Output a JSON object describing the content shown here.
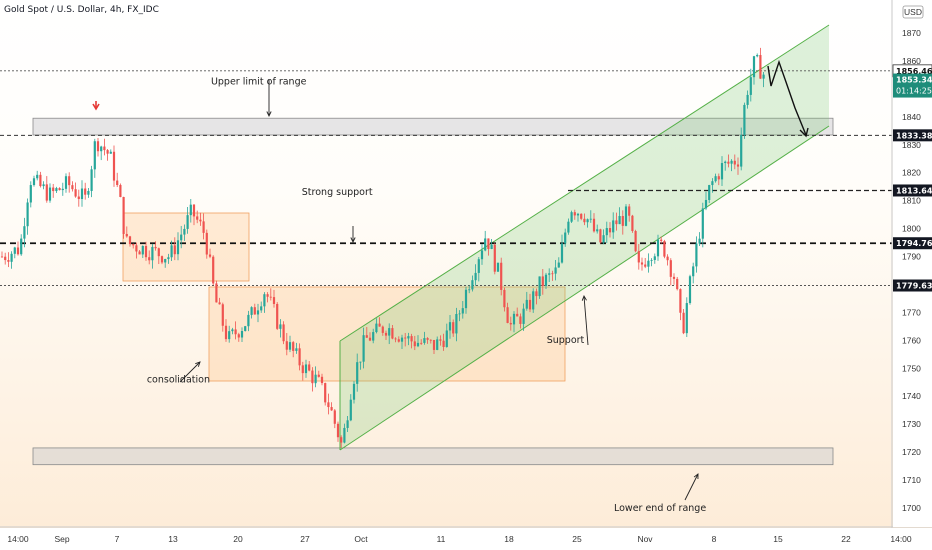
{
  "chart_data": {
    "type": "candlestick",
    "title": "Gold Spot / U.S. Dollar, 4h, FX_IDC",
    "currency": "USD",
    "ylim": [
      1695,
      1875
    ],
    "y_ticks": [
      1700,
      1710,
      1720,
      1730,
      1740,
      1750,
      1760,
      1770,
      1780,
      1790,
      1800,
      1810,
      1820,
      1830,
      1840,
      1850,
      1860,
      1870
    ],
    "x_ticks": [
      "14:00",
      "Sep",
      "7",
      "13",
      "20",
      "27",
      "Oct",
      "11",
      "18",
      "25",
      "Nov",
      "8",
      "15",
      "22",
      "14:00"
    ],
    "price_labels": [
      {
        "value": 1856.46,
        "text": "1856.46",
        "style": "outline"
      },
      {
        "value": 1853.34,
        "text": "1853.34",
        "sub": "01:14:25",
        "style": "current"
      },
      {
        "value": 1833.38,
        "text": "1833.38",
        "style": "dark"
      },
      {
        "value": 1813.64,
        "text": "1813.64",
        "style": "dark"
      },
      {
        "value": 1794.76,
        "text": "1794.76",
        "style": "dark"
      },
      {
        "value": 1779.63,
        "text": "1779.63",
        "style": "dark"
      }
    ],
    "horizontal_lines": [
      {
        "value": 1856.46,
        "style": "dotted"
      },
      {
        "value": 1833.38,
        "style": "dashed"
      },
      {
        "value": 1794.76,
        "style": "dashed-bold"
      },
      {
        "value": 1779.63,
        "style": "dotted"
      }
    ],
    "zones": [
      {
        "label": "upper range zone",
        "from": 1833.5,
        "to": 1839.5
      },
      {
        "label": "lower range zone",
        "from": 1715.5,
        "to": 1721.5
      }
    ],
    "annotations": [
      {
        "text": "Upper limit of range",
        "x": 0.29,
        "value": 1851.5
      },
      {
        "text": "Strong support",
        "x": 0.378,
        "value": 1812
      },
      {
        "text": "Support",
        "x": 0.634,
        "value": 1759
      },
      {
        "text": "consolidation",
        "x": 0.2,
        "value": 1745
      },
      {
        "text": "Lower end of range",
        "x": 0.74,
        "value": 1699
      }
    ]
  }
}
